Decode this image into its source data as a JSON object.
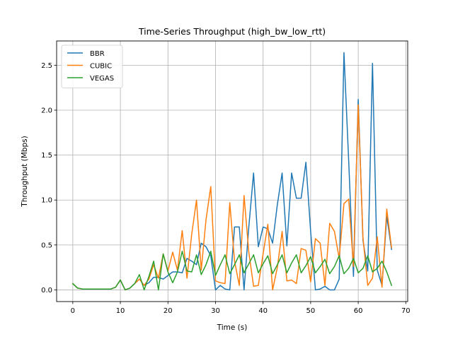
{
  "chart_data": {
    "type": "line",
    "title": "Time-Series Throughput (high_bw_low_rtt)",
    "xlabel": "Time (s)",
    "ylabel": "Throughput (Mbps)",
    "xlim": [
      -3.4,
      70.4
    ],
    "ylim": [
      -0.13,
      2.77
    ],
    "xticks": [
      0,
      10,
      20,
      30,
      40,
      50,
      60,
      70
    ],
    "yticks": [
      0.0,
      0.5,
      1.0,
      1.5,
      2.0,
      2.5
    ],
    "xtick_labels": [
      "0",
      "10",
      "20",
      "30",
      "40",
      "50",
      "60",
      "70"
    ],
    "ytick_labels": [
      "0.0",
      "0.5",
      "1.0",
      "1.5",
      "2.0",
      "2.5"
    ],
    "grid": true,
    "legend_position": "top-left",
    "x": [
      0,
      1,
      2,
      3,
      4,
      5,
      6,
      7,
      8,
      9,
      10,
      11,
      12,
      13,
      14,
      15,
      16,
      17,
      18,
      19,
      20,
      21,
      22,
      23,
      24,
      25,
      26,
      27,
      28,
      29,
      30,
      31,
      32,
      33,
      34,
      35,
      36,
      37,
      38,
      39,
      40,
      41,
      42,
      43,
      44,
      45,
      46,
      47,
      48,
      49,
      50,
      51,
      52,
      53,
      54,
      55,
      56,
      57,
      58,
      59,
      60,
      61,
      62,
      63,
      64,
      65,
      66,
      67
    ],
    "series": [
      {
        "name": "BBR",
        "color": "#1f77b4",
        "values": [
          0.07,
          0.02,
          0.01,
          0.01,
          0.01,
          0.01,
          0.01,
          0.01,
          0.01,
          0.03,
          0.11,
          0.0,
          0.02,
          0.07,
          0.12,
          0.05,
          0.08,
          0.14,
          0.14,
          0.12,
          0.16,
          0.2,
          0.2,
          0.19,
          0.35,
          0.32,
          0.28,
          0.52,
          0.48,
          0.38,
          0.0,
          0.05,
          0.01,
          0.0,
          0.7,
          0.7,
          0.0,
          0.7,
          1.3,
          0.48,
          0.7,
          0.68,
          0.52,
          0.95,
          1.3,
          0.49,
          1.3,
          1.02,
          1.02,
          1.42,
          0.65,
          0.0,
          0.01,
          0.04,
          0.0,
          0.0,
          0.12,
          2.64,
          1.43,
          0.15,
          2.12,
          0.55,
          0.21,
          2.52,
          0.22,
          0.05,
          0.82,
          0.45
        ]
      },
      {
        "name": "CUBIC",
        "color": "#ff7f0e",
        "values": [
          0.07,
          0.02,
          0.01,
          0.01,
          0.01,
          0.01,
          0.01,
          0.01,
          0.01,
          0.03,
          0.11,
          0.0,
          0.02,
          0.07,
          0.12,
          0.05,
          0.12,
          0.28,
          0.13,
          0.4,
          0.21,
          0.42,
          0.22,
          0.66,
          0.13,
          0.62,
          1.0,
          0.22,
          0.78,
          1.15,
          0.1,
          0.08,
          0.07,
          0.97,
          0.32,
          0.05,
          1.05,
          0.42,
          0.04,
          0.05,
          0.4,
          0.73,
          0.0,
          0.25,
          0.65,
          0.1,
          0.11,
          0.07,
          0.46,
          0.44,
          0.09,
          0.57,
          0.52,
          0.05,
          0.74,
          0.65,
          0.35,
          0.96,
          1.01,
          0.26,
          2.06,
          0.58,
          0.05,
          0.13,
          0.59,
          0.03,
          0.9,
          0.47
        ]
      },
      {
        "name": "VEGAS",
        "color": "#2ca02c",
        "values": [
          0.07,
          0.02,
          0.01,
          0.01,
          0.01,
          0.01,
          0.01,
          0.01,
          0.01,
          0.03,
          0.11,
          0.0,
          0.02,
          0.07,
          0.17,
          0.0,
          0.15,
          0.32,
          0.0,
          0.4,
          0.2,
          0.08,
          0.2,
          0.43,
          0.21,
          0.2,
          0.39,
          0.17,
          0.28,
          0.43,
          0.16,
          0.28,
          0.39,
          0.18,
          0.28,
          0.39,
          0.19,
          0.29,
          0.39,
          0.19,
          0.29,
          0.38,
          0.18,
          0.28,
          0.39,
          0.19,
          0.3,
          0.39,
          0.19,
          0.27,
          0.37,
          0.19,
          0.26,
          0.34,
          0.18,
          0.26,
          0.38,
          0.18,
          0.24,
          0.35,
          0.19,
          0.24,
          0.38,
          0.2,
          0.24,
          0.32,
          0.2,
          0.05
        ]
      }
    ]
  }
}
